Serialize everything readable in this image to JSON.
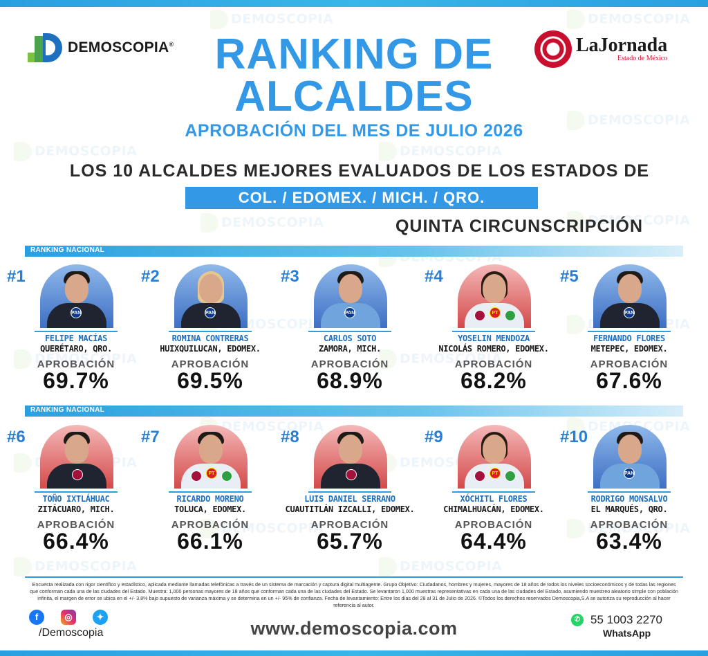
{
  "watermark": "DEMOSCOPIA",
  "logos": {
    "demoscopia": "DEMOSCOPIA",
    "registered": "®",
    "jornada": "LaJornada",
    "jornada_sub": "Estado de México"
  },
  "header": {
    "title_line1": "RANKING DE",
    "title_line2": "ALCALDES",
    "subtitle": "APROBACIÓN DEL MES DE JULIO 2026",
    "los10": "LOS 10 ALCALDES MEJORES EVALUADOS DE LOS ESTADOS DE",
    "states": "COL. /  EDOMEX.  /  MICH.  /  QRO.",
    "circ": "QUINTA CIRCUNSCRIPCIÓN"
  },
  "band_label": "RANKING NACIONAL",
  "approval_label": "APROBACIÓN",
  "mayors": [
    {
      "rank": "#1",
      "name": "FELIPE MACÍAS",
      "place": "QUERÉTARO, QRO.",
      "approval": "69.7%",
      "approval_value": 69.7,
      "party": "PAN"
    },
    {
      "rank": "#2",
      "name": "ROMINA CONTRERAS",
      "place": "HUIXQUILUCAN, EDOMEX.",
      "approval": "69.5%",
      "approval_value": 69.5,
      "party": "PAN"
    },
    {
      "rank": "#3",
      "name": "CARLOS SOTO",
      "place": "ZAMORA, MICH.",
      "approval": "68.9%",
      "approval_value": 68.9,
      "party": "PAN"
    },
    {
      "rank": "#4",
      "name": "YOSELIN MENDOZA",
      "place": "NICOLÁS ROMERO, EDOMEX.",
      "approval": "68.2%",
      "approval_value": 68.2,
      "party": "PT"
    },
    {
      "rank": "#5",
      "name": "FERNANDO FLORES",
      "place": "METEPEC, EDOMEX.",
      "approval": "67.6%",
      "approval_value": 67.6,
      "party": "PAN"
    },
    {
      "rank": "#6",
      "name": "TOÑO IXTLÁHUAC",
      "place": "ZITÁCUARO, MICH.",
      "approval": "66.4%",
      "approval_value": 66.4,
      "party": "MORENA"
    },
    {
      "rank": "#7",
      "name": "RICARDO MORENO",
      "place": "TOLUCA, EDOMEX.",
      "approval": "66.1%",
      "approval_value": 66.1,
      "party": "PT"
    },
    {
      "rank": "#8",
      "name": "LUIS DANIEL SERRANO",
      "place": "CUAUTITLÁN IZCALLI, EDOMEX.",
      "approval": "65.7%",
      "approval_value": 65.7,
      "party": "MORENA"
    },
    {
      "rank": "#9",
      "name": "XÓCHITL FLORES",
      "place": "CHIMALHUACÁN, EDOMEX.",
      "approval": "64.4%",
      "approval_value": 64.4,
      "party": "PT"
    },
    {
      "rank": "#10",
      "name": "RODRIGO MONSALVO",
      "place": "EL MARQUÉS, QRO.",
      "approval": "63.4%",
      "approval_value": 63.4,
      "party": "PAN"
    }
  ],
  "party_labels": {
    "pan": "PAN",
    "pt": "PT",
    "morena": "MORENA",
    "verde": "VERDE"
  },
  "disclaimer": "Encuesta realizada con rigor científico y estadístico, aplicada mediante llamadas telefónicas a través de un sistema de marcación y captura digital multiagente. Grupo Objetivo: Ciudadanos, hombres y mujeres, mayores de 18 años de todos los niveles socioeconómicos y de todas las regiones que conforman cada una de las ciudades del Estado. Muestra: 1,000 personas mayores de 18 años que conforman cada una de las ciudades del Estado. Se levantaron 1,000 muestras representativas en cada una de las ciudades del Estado, asumiendo muestreo aleatorio simple con población infinita, el margen de error se ubica en el +/- 3.8% bajo supuesto de varianza máxima y se determina en un +/- 95% de confianza. Fecha de levantamiento: Entre los días del 28 al 31 de Julio de 2026. ©Todos los derechos reservados Demoscopia,S.A se autoriza su reproducción al hacer referencia al autor.",
  "footer": {
    "icons": [
      "facebook-icon",
      "instagram-icon",
      "twitter-icon"
    ],
    "handle": "/Demoscopia",
    "website": "www.demoscopia.com",
    "phone": "55 1003 2270",
    "whatsapp": "WhatsApp"
  },
  "colors": {
    "accent": "#3399e6",
    "band": "#2a9fe0",
    "name": "#1f6fbf"
  }
}
